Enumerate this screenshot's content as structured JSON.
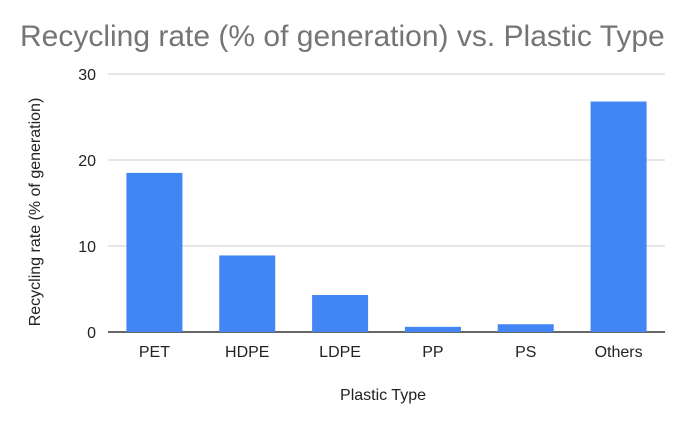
{
  "chart_data": {
    "type": "bar",
    "title": "Recycling rate (% of generation) vs. Plastic Type",
    "xlabel": "Plastic Type",
    "ylabel": "Recycling rate (% of generation)",
    "categories": [
      "PET",
      "HDPE",
      "LDPE",
      "PP",
      "PS",
      "Others"
    ],
    "values": [
      18.5,
      8.9,
      4.3,
      0.6,
      0.9,
      26.8
    ],
    "ylim": [
      0,
      30
    ],
    "yticks": [
      0,
      10,
      20,
      30
    ],
    "grid": true,
    "legend": "none",
    "bar_color": "#4285F4",
    "grid_color": "#cccccc",
    "baseline_color": "#333333",
    "title_color": "#757575"
  }
}
